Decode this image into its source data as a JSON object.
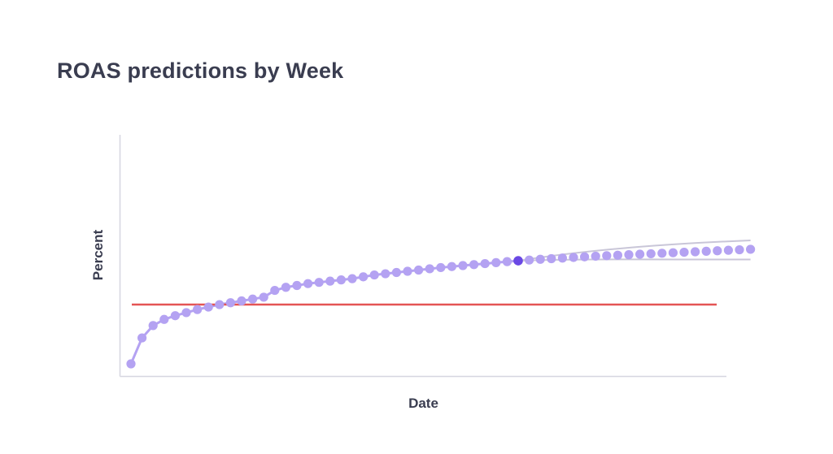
{
  "chart_data": {
    "type": "line",
    "title": "ROAS predictions by Week",
    "xlabel": "Date",
    "ylabel": "Percent",
    "x_tick_labels": [],
    "y_tick_labels": [],
    "grid": false,
    "series": [
      {
        "kind": "actual",
        "color": "#b4a2f2",
        "values": [
          0,
          21,
          31,
          36,
          39,
          41.5,
          44,
          46,
          48,
          49.5,
          51,
          52.5,
          54,
          59.5,
          62,
          63.5,
          65,
          66,
          67,
          68,
          69,
          70.5,
          72,
          73,
          74,
          75,
          76,
          77,
          78,
          78.8,
          79.6,
          80.4,
          81.2,
          82,
          82.8,
          83.5
        ]
      },
      {
        "kind": "prediction",
        "color": "#b4a2f2",
        "values": [
          83.5,
          84.1,
          84.7,
          85.2,
          85.7,
          86.2,
          86.7,
          87.2,
          87.6,
          88,
          88.4,
          88.8,
          89.2,
          89.6,
          90,
          90.4,
          90.8,
          91.2,
          91.6,
          92,
          92.4,
          92.8
        ]
      },
      {
        "kind": "upper-bound",
        "color": "#c9c6d8",
        "values": [
          83.5,
          100
        ]
      },
      {
        "kind": "lower-bound",
        "color": "#c9c6d8",
        "values": [
          83.5,
          84.5
        ]
      },
      {
        "kind": "target",
        "color": "#e45454",
        "value": 48
      }
    ],
    "highlight": {
      "index": 35,
      "color": "#6a48e4"
    },
    "ylim": [
      0,
      100
    ],
    "axis_color": "#d6d6e0"
  }
}
